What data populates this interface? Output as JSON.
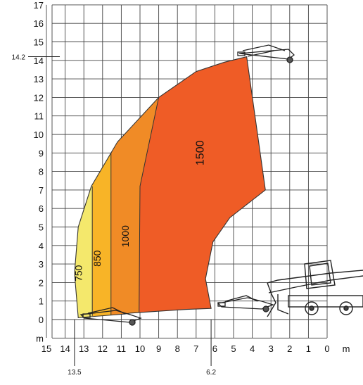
{
  "chart_data": {
    "type": "area",
    "title": "",
    "xlabel": "m",
    "ylabel": "m",
    "x_reversed": true,
    "xlim": [
      0,
      15
    ],
    "ylim": [
      0,
      17
    ],
    "grid": true,
    "x_ticks": [
      "15",
      "14",
      "13",
      "12",
      "11",
      "10",
      "9",
      "8",
      "7",
      "6",
      "5",
      "4",
      "3",
      "2",
      "1",
      "0"
    ],
    "y_ticks": [
      "0",
      "1",
      "2",
      "3",
      "4",
      "5",
      "6",
      "7",
      "8",
      "9",
      "10",
      "11",
      "12",
      "13",
      "14",
      "15",
      "16",
      "17"
    ],
    "annotations": [
      {
        "text": "14.2",
        "axis": "y",
        "value": 14.2
      },
      {
        "text": "13.5",
        "axis": "x",
        "value": 13.5
      },
      {
        "text": "6.2",
        "axis": "x",
        "value": 6.2
      }
    ],
    "zones": [
      {
        "label": "750",
        "color": "#f4e86c",
        "label_pos": [
          13.1,
          2.5
        ]
      },
      {
        "label": "850",
        "color": "#f8b427",
        "label_pos": [
          12.1,
          3.3
        ]
      },
      {
        "label": "1000",
        "color": "#f08b26",
        "label_pos": [
          10.6,
          4.5
        ]
      },
      {
        "label": "1500",
        "color": "#ef5c26",
        "label_pos": [
          6.6,
          9.0
        ]
      }
    ],
    "envelope": [
      [
        6.2,
        0.6
      ],
      [
        6.5,
        2.2
      ],
      [
        6.1,
        4.2
      ],
      [
        5.2,
        5.5
      ],
      [
        3.3,
        7.0
      ],
      [
        4.3,
        14.2
      ],
      [
        5.5,
        13.9
      ],
      [
        7.0,
        13.4
      ],
      [
        9.0,
        12.0
      ],
      [
        11.2,
        9.6
      ],
      [
        12.6,
        7.2
      ],
      [
        13.3,
        5.0
      ],
      [
        13.5,
        2.5
      ],
      [
        13.3,
        0.1
      ],
      [
        10.8,
        0.3
      ],
      [
        10.5,
        0.35
      ],
      [
        7.5,
        0.55
      ]
    ],
    "boundaries": {
      "850": {
        "x": 12.55,
        "y_top": 7.2
      },
      "1000": {
        "x": 11.55,
        "y_top": 9.2
      },
      "1500": [
        [
          10.05,
          0.3
        ],
        [
          10.0,
          7.2
        ],
        [
          9.0,
          12.0
        ]
      ]
    }
  }
}
